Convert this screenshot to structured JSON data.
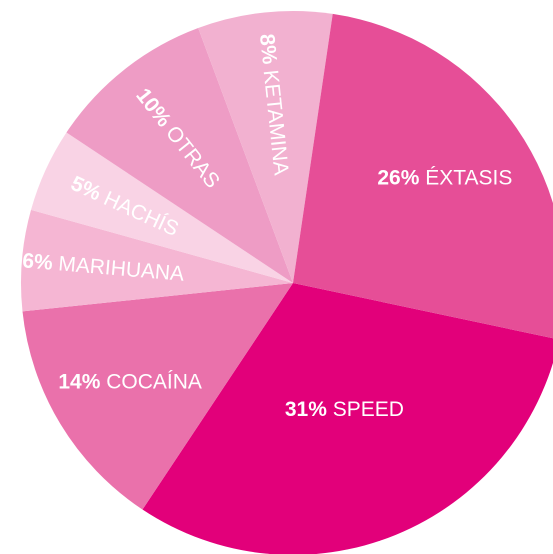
{
  "chart_data": {
    "type": "pie",
    "unit": "%",
    "slices": [
      {
        "label": "SPEED",
        "value": 31,
        "pct_text": "31%",
        "color": "#e2007a"
      },
      {
        "label": "COCAÍNA",
        "value": 14,
        "pct_text": "14%",
        "color": "#ea71ab"
      },
      {
        "label": "MARIHUANA",
        "value": 6,
        "pct_text": "6%",
        "color": "#f5b6d3"
      },
      {
        "label": "HACHÍS",
        "value": 5,
        "pct_text": "5%",
        "color": "#f9d3e5"
      },
      {
        "label": "OTRAS",
        "value": 10,
        "pct_text": "10%",
        "color": "#ee9cc5"
      },
      {
        "label": "KETAMINA",
        "value": 8,
        "pct_text": "8%",
        "color": "#f2b1d0"
      },
      {
        "label": "ÉXTASIS",
        "value": 26,
        "pct_text": "26%",
        "color": "#e64e97"
      }
    ]
  }
}
